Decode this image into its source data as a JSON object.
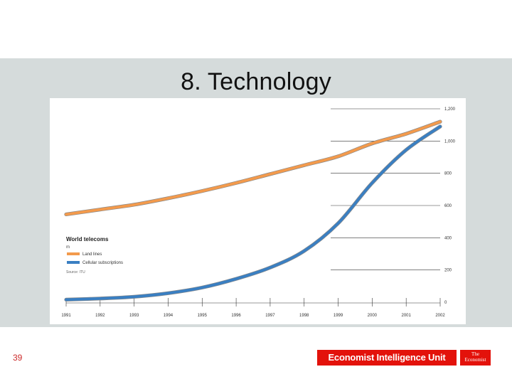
{
  "slide": {
    "title": "8. Technology",
    "page_number": "39"
  },
  "logos": {
    "eiu": "Economist Intelligence Unit",
    "economist_line1": "The",
    "economist_line2": "Economist"
  },
  "colors": {
    "land_lines": "#f39a4c",
    "cellular": "#3a7fc2",
    "band": "#d5dbdb"
  },
  "chart_data": {
    "type": "line",
    "title": "World telecoms",
    "subtitle": "m",
    "source": "Source: ITU",
    "x": [
      "1991",
      "1992",
      "1993",
      "1994",
      "1995",
      "1996",
      "1997",
      "1998",
      "1999",
      "2000",
      "2001",
      "2002"
    ],
    "ylim": [
      0,
      1200
    ],
    "yticks": [
      "0",
      "200",
      "400",
      "600",
      "800",
      "1,000",
      "1,200"
    ],
    "legend_position": "left-middle",
    "series": [
      {
        "name": "Land lines",
        "color": "#f39a4c",
        "values": [
          545,
          575,
          605,
          645,
          690,
          740,
          795,
          850,
          905,
          985,
          1045,
          1120
        ]
      },
      {
        "name": "Cellular subscriptions",
        "color": "#3a7fc2",
        "values": [
          16,
          23,
          34,
          56,
          91,
          145,
          215,
          318,
          490,
          740,
          945,
          1090
        ]
      }
    ]
  }
}
